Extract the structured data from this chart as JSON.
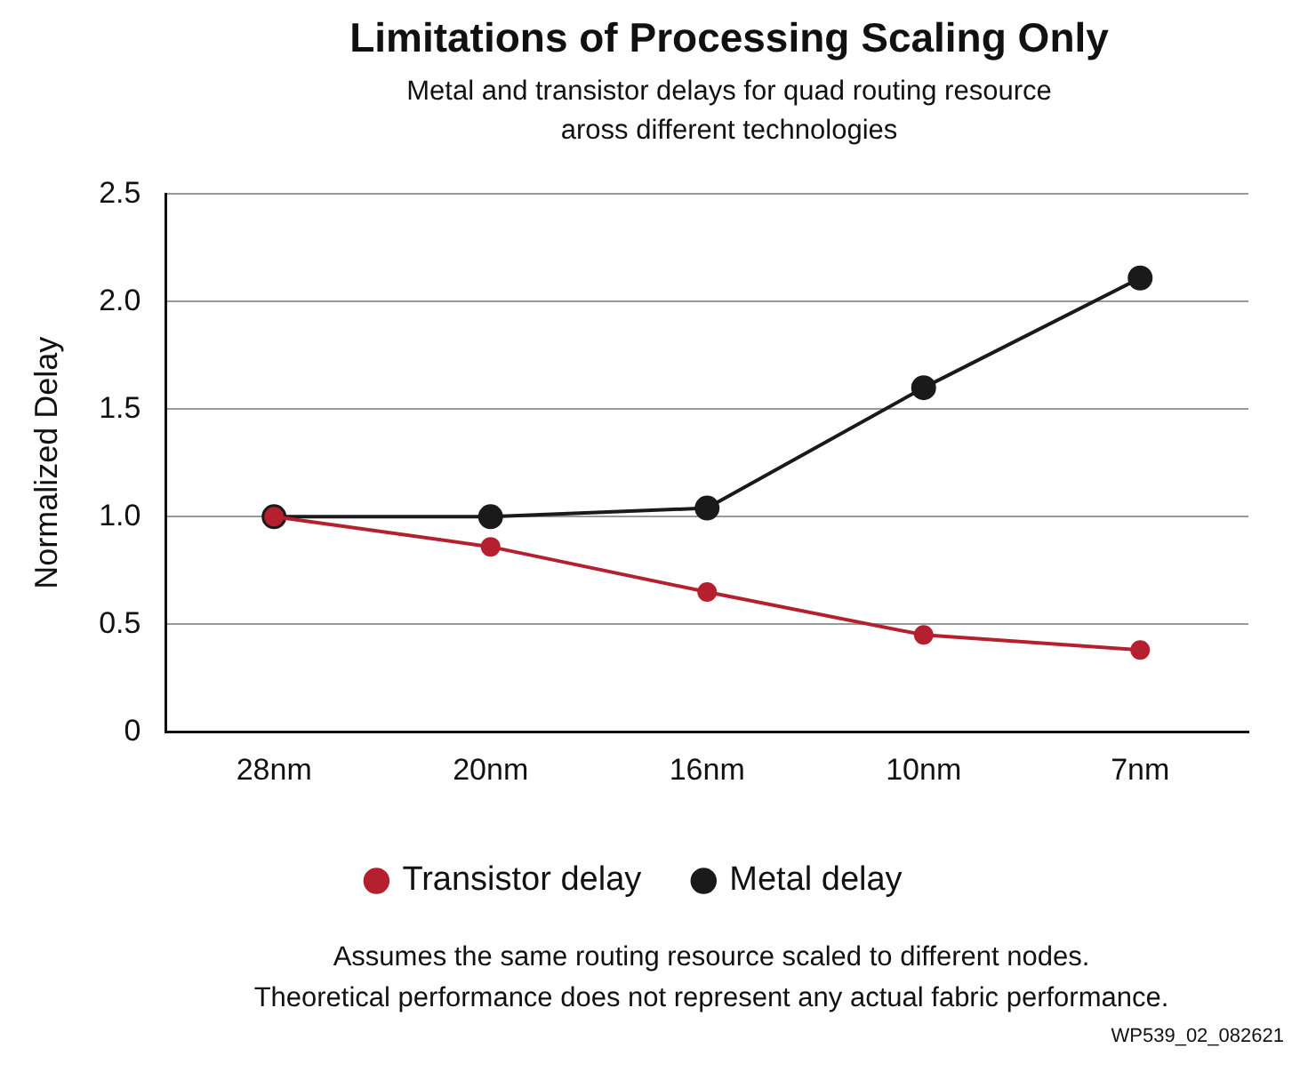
{
  "chart_data": {
    "type": "line",
    "title": "Limitations of Processing Scaling Only",
    "subtitle": "Metal and transistor delays for quad routing resource\naross different technologies",
    "ylabel": "Normalized Delay",
    "categories": [
      "28nm",
      "20nm",
      "16nm",
      "10nm",
      "7nm"
    ],
    "series": [
      {
        "name": "Transistor delay",
        "color": "#b5202e",
        "values": [
          1.0,
          0.86,
          0.65,
          0.45,
          0.38
        ]
      },
      {
        "name": "Metal delay",
        "color": "#1a1a1a",
        "values": [
          1.0,
          1.0,
          1.04,
          1.6,
          2.11
        ]
      }
    ],
    "ylim": [
      0,
      2.5
    ],
    "yticks": [
      0,
      0.5,
      {
        "value": 1,
        "label": "1.0"
      },
      1.5,
      {
        "value": 2,
        "label": "2.0"
      },
      2.5
    ],
    "grid": "y",
    "legend": "bottom",
    "marker": "circle",
    "line_style": "solid",
    "annotations": [
      "Assumes the same routing resource scaled to different nodes.\nTheoretical performance does not represent any actual fabric performance.",
      "WP539_02_082621"
    ]
  }
}
